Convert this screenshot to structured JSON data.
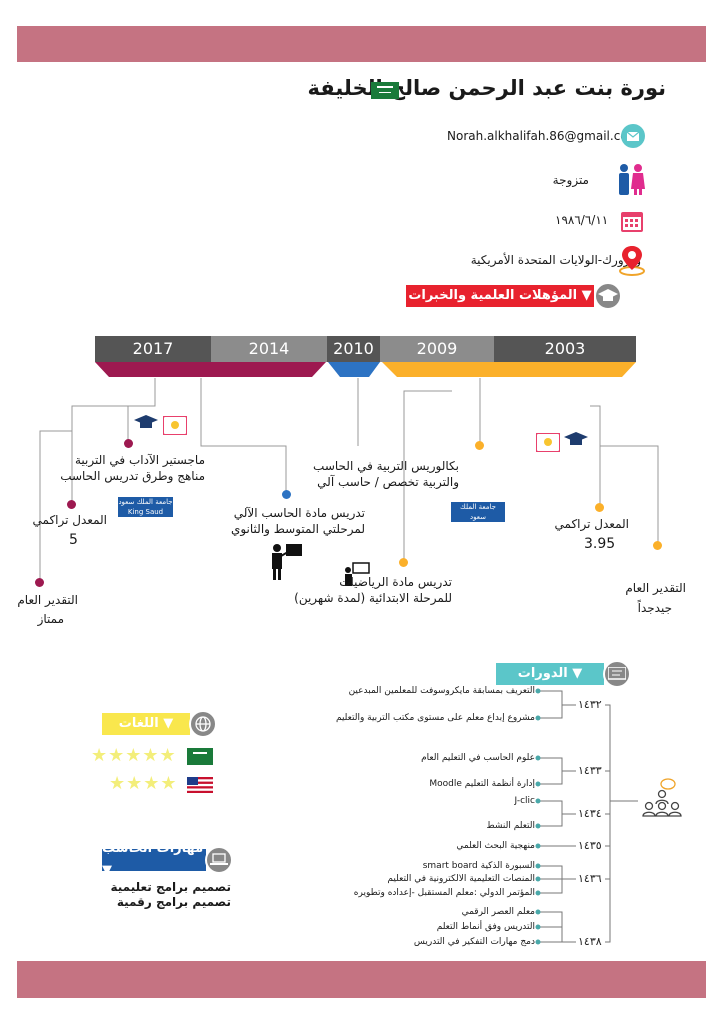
{
  "header": {
    "name": "نورة بنت عبد الرحمن صالح الخليفة",
    "email": "Norah.alkhalifah.86@gmail.com",
    "marital_status": "متزوجة",
    "birth_date": "١٩٨٦/٦/١١",
    "location": "وورورك-الولايات المتحدة الأمريكية"
  },
  "qualifications": {
    "title": "المؤهلات العلمية والخبرات ▼",
    "years": [
      "2017",
      "2014",
      "2010",
      "2009",
      "2003"
    ],
    "masters": "ماجستير الآداب في التربية\nمناهج وطرق تدريس الحاسب",
    "masters_gpa_label": "المعدل تراكمي",
    "masters_gpa": "5",
    "masters_grade_label": "التقدير العام",
    "masters_grade": "ممتاز",
    "teach_computer": "تدريس مادة الحاسب الآلي\nلمرحلتي المتوسط والثانوي",
    "teach_math": "تدريس مادة الرياضيات\nللمرحلة الابتدائية (لمدة شهرين)",
    "bachelor": "بكالوريس التربية في الحاسب\nوالتربية تخصص / حاسب آلي",
    "bachelor_gpa_label": "المعدل تراكمي",
    "bachelor_gpa": "3.95",
    "bachelor_grade_label": "التقدير العام",
    "bachelor_grade": "جيدجداً",
    "university_logo": "جامعة الملك سعود",
    "university_logo_en": "King Saud University"
  },
  "courses": {
    "title": "الدورات ▼",
    "groups": [
      {
        "year": "١٤٣٢",
        "items": [
          "التعريف بمسابقة مايكروسوفت للمعلمين المبدعين",
          "مشروع إبداع معلم على مستوى مكتب التربية والتعليم"
        ]
      },
      {
        "year": "١٤٣٣",
        "items": [
          "علوم الحاسب في التعليم العام",
          "إدارة أنظمة التعليم Moodle"
        ]
      },
      {
        "year": "١٤٣٤",
        "items": [
          "J-clic",
          "التعلم النشط"
        ]
      },
      {
        "year": "١٤٣٥",
        "items": [
          "منهجية البحث العلمي"
        ]
      },
      {
        "year": "١٤٣٦",
        "items": [
          "السبورة الذكية smart board",
          "المنصات التعليمية الالكترونية في التعليم",
          "المؤتمر الدولي :معلم المستقبل -إعداده وتطويره"
        ]
      },
      {
        "year": "١٤٣٨",
        "items": [
          "معلم العصر الرقمي",
          "التدريس وفق أنماط التعلم",
          "دمج مهارات التفكير في التدريس"
        ]
      }
    ]
  },
  "languages": {
    "title": "اللغات ▼",
    "items": [
      {
        "flag": "saudi-flag",
        "stars": "★★★★★",
        "rating": 5
      },
      {
        "flag": "us-flag",
        "stars": "★★★★",
        "rating": 4
      }
    ]
  },
  "computer_skills": {
    "title": "مهارات الحاسب ▼",
    "items": [
      "تصميم برامج تعليمية",
      "تصميم برامج رقمية"
    ]
  },
  "colors": {
    "band": "#c57382",
    "red": "#e8222e",
    "teal": "#5bc6c9",
    "gold": "#fbb02a",
    "maroon": "#9d1950",
    "blue": "#2d73c3",
    "yellow": "#f9e74d",
    "navy": "#1e5ba6",
    "dark": "#555555"
  }
}
